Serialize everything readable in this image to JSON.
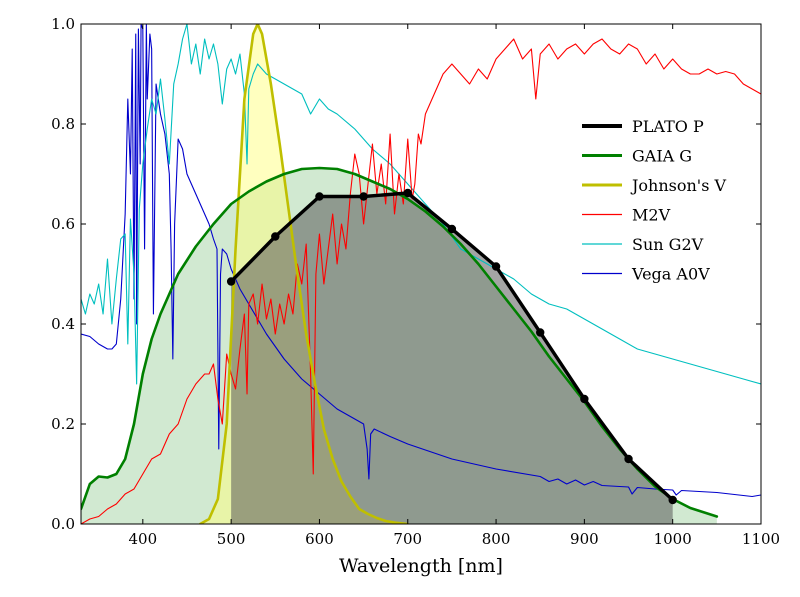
{
  "chart_data": {
    "type": "line",
    "title": "",
    "xlabel": "Wavelength [nm]",
    "ylabel": "",
    "xlim": [
      330,
      1100
    ],
    "ylim": [
      0,
      1.0
    ],
    "grid": false,
    "legend_position": "top-right",
    "x_ticks": [
      400,
      500,
      600,
      700,
      800,
      900,
      1000,
      1100
    ],
    "x_tick_labels": [
      "400",
      "500",
      "600",
      "700",
      "800",
      "900",
      "1000",
      "1100"
    ],
    "y_ticks": [
      0.0,
      0.2,
      0.4,
      0.6,
      0.8,
      1.0
    ],
    "y_tick_labels": [
      "0.0",
      "0.2",
      "0.4",
      "0.6",
      "0.8",
      "1.0"
    ],
    "series": [
      {
        "name": "PLATO P",
        "color": "#000000",
        "style": "thick-with-markers",
        "fill": "#5a5a5a",
        "x": [
          500,
          550,
          600,
          650,
          700,
          750,
          800,
          850,
          900,
          950,
          1000
        ],
        "values": [
          0.485,
          0.575,
          0.655,
          0.655,
          0.662,
          0.59,
          0.515,
          0.383,
          0.25,
          0.13,
          0.048
        ]
      },
      {
        "name": "GAIA G",
        "color": "#008000",
        "style": "thick",
        "fill": "#b2dab2",
        "x": [
          330,
          340,
          350,
          360,
          370,
          380,
          390,
          400,
          410,
          420,
          430,
          440,
          460,
          480,
          500,
          520,
          540,
          560,
          580,
          600,
          620,
          640,
          660,
          680,
          700,
          720,
          740,
          760,
          780,
          800,
          820,
          840,
          860,
          880,
          900,
          920,
          940,
          960,
          980,
          1000,
          1020,
          1050
        ],
        "values": [
          0.03,
          0.08,
          0.095,
          0.093,
          0.1,
          0.13,
          0.2,
          0.3,
          0.37,
          0.42,
          0.46,
          0.5,
          0.555,
          0.6,
          0.64,
          0.665,
          0.685,
          0.7,
          0.71,
          0.712,
          0.71,
          0.7,
          0.685,
          0.67,
          0.65,
          0.625,
          0.595,
          0.56,
          0.52,
          0.475,
          0.43,
          0.385,
          0.335,
          0.29,
          0.245,
          0.195,
          0.15,
          0.11,
          0.075,
          0.05,
          0.032,
          0.015
        ]
      },
      {
        "name": "Johnson's V",
        "color": "#bfbf00",
        "style": "thick",
        "fill": "#ffff80",
        "x": [
          465,
          475,
          485,
          495,
          505,
          515,
          525,
          530,
          535,
          545,
          555,
          565,
          575,
          585,
          595,
          605,
          615,
          625,
          635,
          645,
          655,
          665,
          675,
          685,
          695,
          700
        ],
        "values": [
          0.0,
          0.01,
          0.05,
          0.2,
          0.55,
          0.85,
          0.98,
          1.0,
          0.98,
          0.88,
          0.76,
          0.63,
          0.5,
          0.38,
          0.28,
          0.19,
          0.13,
          0.085,
          0.055,
          0.03,
          0.02,
          0.012,
          0.006,
          0.003,
          0.001,
          0.0
        ]
      },
      {
        "name": "Vega A0V",
        "color": "#0000cc",
        "style": "thin",
        "x": [
          330,
          340,
          350,
          360,
          365,
          370,
          375,
          380,
          383,
          386,
          388,
          390,
          392,
          393,
          395,
          397,
          398,
          400,
          402,
          404,
          405,
          408,
          410,
          412,
          415,
          420,
          425,
          430,
          432,
          434,
          436,
          440,
          445,
          450,
          455,
          460,
          465,
          470,
          475,
          480,
          484,
          486,
          488,
          490,
          495,
          500,
          510,
          520,
          540,
          560,
          580,
          600,
          620,
          640,
          650,
          654,
          656,
          658,
          662,
          680,
          700,
          750,
          800,
          850,
          860,
          870,
          880,
          890,
          900,
          910,
          920,
          940,
          950,
          954,
          960,
          980,
          1000,
          1004,
          1010,
          1050,
          1090,
          1100
        ],
        "values": [
          0.38,
          0.375,
          0.36,
          0.35,
          0.35,
          0.36,
          0.45,
          0.62,
          0.85,
          0.7,
          0.95,
          0.45,
          0.98,
          0.4,
          0.99,
          0.72,
          1.0,
          0.99,
          0.55,
          1.0,
          0.85,
          0.98,
          0.95,
          0.42,
          0.88,
          0.82,
          0.78,
          0.7,
          0.55,
          0.33,
          0.6,
          0.77,
          0.75,
          0.7,
          0.68,
          0.66,
          0.64,
          0.62,
          0.6,
          0.57,
          0.55,
          0.15,
          0.5,
          0.55,
          0.54,
          0.51,
          0.47,
          0.44,
          0.38,
          0.33,
          0.29,
          0.26,
          0.23,
          0.21,
          0.2,
          0.15,
          0.09,
          0.18,
          0.19,
          0.175,
          0.16,
          0.13,
          0.11,
          0.095,
          0.085,
          0.09,
          0.08,
          0.088,
          0.078,
          0.085,
          0.077,
          0.075,
          0.074,
          0.06,
          0.073,
          0.07,
          0.068,
          0.058,
          0.067,
          0.063,
          0.055,
          0.058
        ]
      },
      {
        "name": "Sun G2V",
        "color": "#00bfbf",
        "style": "thin",
        "x": [
          330,
          335,
          340,
          345,
          350,
          355,
          360,
          365,
          370,
          375,
          380,
          383,
          386,
          390,
          393,
          396,
          400,
          405,
          410,
          415,
          420,
          425,
          430,
          435,
          440,
          445,
          450,
          455,
          460,
          465,
          470,
          475,
          480,
          485,
          490,
          495,
          500,
          505,
          510,
          515,
          518,
          520,
          525,
          530,
          540,
          550,
          560,
          570,
          580,
          590,
          600,
          610,
          620,
          640,
          660,
          680,
          700,
          720,
          740,
          760,
          780,
          800,
          820,
          840,
          860,
          880,
          900,
          920,
          940,
          960,
          980,
          1000,
          1020,
          1040,
          1060,
          1080,
          1100
        ],
        "values": [
          0.45,
          0.42,
          0.46,
          0.44,
          0.48,
          0.42,
          0.53,
          0.4,
          0.49,
          0.57,
          0.58,
          0.36,
          0.61,
          0.5,
          0.28,
          0.63,
          0.72,
          0.79,
          0.85,
          0.82,
          0.89,
          0.81,
          0.72,
          0.88,
          0.92,
          0.97,
          1.0,
          0.92,
          0.96,
          0.9,
          0.97,
          0.93,
          0.96,
          0.92,
          0.84,
          0.91,
          0.93,
          0.9,
          0.94,
          0.86,
          0.72,
          0.87,
          0.9,
          0.92,
          0.9,
          0.89,
          0.88,
          0.87,
          0.86,
          0.82,
          0.85,
          0.83,
          0.82,
          0.79,
          0.75,
          0.72,
          0.68,
          0.64,
          0.6,
          0.55,
          0.53,
          0.51,
          0.49,
          0.46,
          0.44,
          0.43,
          0.41,
          0.39,
          0.37,
          0.35,
          0.34,
          0.33,
          0.32,
          0.31,
          0.3,
          0.29,
          0.28
        ]
      },
      {
        "name": "M2V",
        "color": "#ff0000",
        "style": "thin",
        "x": [
          330,
          340,
          350,
          360,
          370,
          380,
          390,
          400,
          410,
          420,
          430,
          440,
          450,
          460,
          470,
          475,
          480,
          485,
          490,
          495,
          500,
          505,
          510,
          515,
          518,
          520,
          525,
          530,
          535,
          540,
          545,
          550,
          555,
          560,
          565,
          570,
          575,
          580,
          585,
          590,
          593,
          596,
          600,
          605,
          610,
          615,
          620,
          625,
          630,
          635,
          640,
          645,
          650,
          655,
          660,
          665,
          670,
          675,
          680,
          685,
          690,
          695,
          700,
          705,
          708,
          712,
          715,
          720,
          730,
          740,
          750,
          760,
          770,
          780,
          790,
          800,
          810,
          820,
          830,
          840,
          845,
          850,
          860,
          870,
          880,
          890,
          900,
          910,
          920,
          930,
          940,
          950,
          960,
          970,
          980,
          990,
          1000,
          1010,
          1020,
          1030,
          1040,
          1050,
          1060,
          1070,
          1080,
          1090,
          1100
        ],
        "values": [
          0.0,
          0.01,
          0.015,
          0.03,
          0.04,
          0.06,
          0.07,
          0.1,
          0.13,
          0.14,
          0.18,
          0.2,
          0.25,
          0.28,
          0.3,
          0.3,
          0.32,
          0.25,
          0.2,
          0.34,
          0.3,
          0.27,
          0.35,
          0.42,
          0.26,
          0.44,
          0.46,
          0.4,
          0.48,
          0.41,
          0.45,
          0.38,
          0.44,
          0.4,
          0.46,
          0.42,
          0.52,
          0.48,
          0.56,
          0.3,
          0.1,
          0.5,
          0.58,
          0.48,
          0.55,
          0.62,
          0.52,
          0.6,
          0.55,
          0.66,
          0.74,
          0.7,
          0.6,
          0.68,
          0.76,
          0.66,
          0.72,
          0.64,
          0.78,
          0.62,
          0.7,
          0.64,
          0.77,
          0.65,
          0.68,
          0.78,
          0.76,
          0.82,
          0.86,
          0.9,
          0.92,
          0.9,
          0.88,
          0.91,
          0.89,
          0.93,
          0.95,
          0.97,
          0.93,
          0.95,
          0.85,
          0.94,
          0.96,
          0.93,
          0.95,
          0.96,
          0.94,
          0.96,
          0.97,
          0.95,
          0.94,
          0.96,
          0.95,
          0.92,
          0.94,
          0.91,
          0.93,
          0.91,
          0.9,
          0.9,
          0.91,
          0.9,
          0.905,
          0.9,
          0.88,
          0.87,
          0.86
        ]
      }
    ]
  }
}
